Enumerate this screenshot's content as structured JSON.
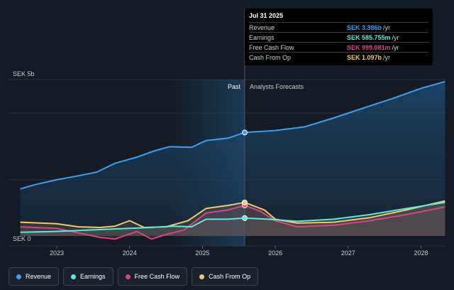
{
  "chart_data": {
    "type": "area",
    "y_axis_labels": {
      "top": "SEK 5b",
      "bottom": "SEK 0"
    },
    "ylim": [
      0,
      5
    ],
    "x_ticks": [
      "2023",
      "2024",
      "2025",
      "2026",
      "2027",
      "2028"
    ],
    "past_label": "Past",
    "forecast_label": "Analysts Forecasts",
    "series": [
      {
        "name": "Revenue",
        "color": "#3b9ef0",
        "x": [
          2022.5,
          2022.7,
          2023.0,
          2023.3,
          2023.55,
          2023.8,
          2024.1,
          2024.35,
          2024.55,
          2024.85,
          2025.05,
          2025.35,
          2025.58,
          2026.0,
          2026.4,
          2026.8,
          2027.2,
          2027.6,
          2028.0,
          2028.33
        ],
        "values": [
          1.54,
          1.68,
          1.84,
          1.97,
          2.09,
          2.38,
          2.58,
          2.79,
          2.92,
          2.9,
          3.12,
          3.2,
          3.386,
          3.45,
          3.57,
          3.86,
          4.18,
          4.49,
          4.83,
          5.05
        ]
      },
      {
        "name": "Earnings",
        "color": "#5ee8e0",
        "x": [
          2022.5,
          2023.0,
          2023.5,
          2024.0,
          2024.3,
          2024.6,
          2024.85,
          2025.05,
          2025.35,
          2025.58,
          2025.9,
          2026.3,
          2026.8,
          2027.3,
          2027.8,
          2028.33
        ],
        "values": [
          0.12,
          0.15,
          0.2,
          0.25,
          0.28,
          0.32,
          0.3,
          0.55,
          0.55,
          0.586,
          0.55,
          0.48,
          0.55,
          0.7,
          0.9,
          1.1
        ]
      },
      {
        "name": "Free Cash Flow",
        "color": "#d6477e",
        "x": [
          2022.5,
          2023.0,
          2023.3,
          2023.6,
          2023.8,
          2024.1,
          2024.3,
          2024.5,
          2024.75,
          2025.05,
          2025.35,
          2025.58,
          2025.8,
          2026.0,
          2026.3,
          2026.8,
          2027.3,
          2027.8,
          2028.33
        ],
        "values": [
          0.3,
          0.25,
          0.1,
          -0.05,
          -0.1,
          0.15,
          -0.1,
          0.05,
          0.2,
          0.75,
          0.85,
          0.999,
          0.8,
          0.5,
          0.3,
          0.35,
          0.5,
          0.7,
          0.95
        ]
      },
      {
        "name": "Cash From Op",
        "color": "#f0c86a",
        "x": [
          2022.5,
          2023.0,
          2023.3,
          2023.6,
          2023.8,
          2024.0,
          2024.2,
          2024.5,
          2024.8,
          2025.05,
          2025.35,
          2025.58,
          2025.85,
          2026.0,
          2026.3,
          2026.8,
          2027.3,
          2027.8,
          2028.33
        ],
        "values": [
          0.45,
          0.4,
          0.3,
          0.28,
          0.32,
          0.5,
          0.28,
          0.3,
          0.5,
          0.9,
          1.0,
          1.097,
          0.85,
          0.55,
          0.42,
          0.45,
          0.6,
          0.85,
          1.15
        ]
      }
    ],
    "highlight_date": "Jul 31 2025",
    "legend": [
      "Revenue",
      "Earnings",
      "Free Cash Flow",
      "Cash From Op"
    ]
  },
  "tooltip": {
    "title": "Jul 31 2025",
    "rows": [
      {
        "label": "Revenue",
        "value": "SEK 3.386b",
        "unit": "/yr",
        "color": "#3b9ef0"
      },
      {
        "label": "Earnings",
        "value": "SEK 585.755m",
        "unit": "/yr",
        "color": "#5ee8e0"
      },
      {
        "label": "Free Cash Flow",
        "value": "SEK 999.081m",
        "unit": "/yr",
        "color": "#d6477e"
      },
      {
        "label": "Cash From Op",
        "value": "SEK 1.097b",
        "unit": "/yr",
        "color": "#f0c86a"
      }
    ]
  }
}
